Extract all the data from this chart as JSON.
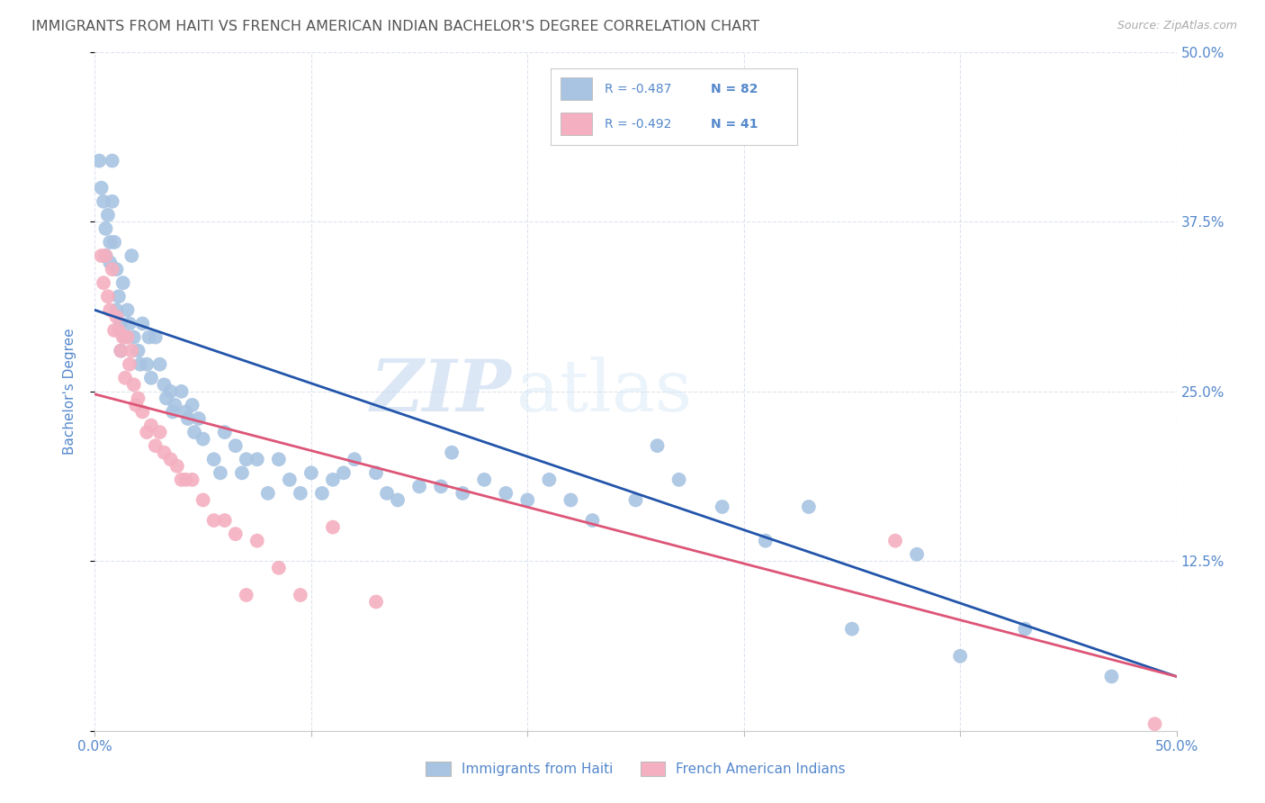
{
  "title": "IMMIGRANTS FROM HAITI VS FRENCH AMERICAN INDIAN BACHELOR'S DEGREE CORRELATION CHART",
  "source_text": "Source: ZipAtlas.com",
  "ylabel": "Bachelor's Degree",
  "xlim": [
    0.0,
    0.5
  ],
  "ylim": [
    0.0,
    0.5
  ],
  "xticks": [
    0.0,
    0.1,
    0.2,
    0.3,
    0.4,
    0.5
  ],
  "yticks": [
    0.0,
    0.125,
    0.25,
    0.375,
    0.5
  ],
  "yticklabels_right": [
    "",
    "12.5%",
    "25.0%",
    "37.5%",
    "50.0%"
  ],
  "watermark_zip": "ZIP",
  "watermark_atlas": "atlas",
  "blue_R": "-0.487",
  "blue_N": "82",
  "pink_R": "-0.492",
  "pink_N": "41",
  "blue_color": "#a8c4e2",
  "pink_color": "#f4b0c0",
  "blue_line_color": "#2255aa",
  "pink_line_color": "#dd5577",
  "title_color": "#555555",
  "axis_label_color": "#5588cc",
  "tick_color": "#5588cc",
  "grid_color": "#dde4ee",
  "blue_scatter_x": [
    0.002,
    0.003,
    0.004,
    0.005,
    0.005,
    0.006,
    0.007,
    0.007,
    0.008,
    0.008,
    0.009,
    0.01,
    0.01,
    0.011,
    0.012,
    0.012,
    0.013,
    0.014,
    0.015,
    0.016,
    0.017,
    0.018,
    0.02,
    0.021,
    0.022,
    0.024,
    0.025,
    0.026,
    0.028,
    0.03,
    0.032,
    0.033,
    0.035,
    0.036,
    0.037,
    0.04,
    0.042,
    0.043,
    0.045,
    0.046,
    0.048,
    0.05,
    0.055,
    0.058,
    0.06,
    0.065,
    0.068,
    0.07,
    0.075,
    0.08,
    0.085,
    0.09,
    0.095,
    0.1,
    0.105,
    0.11,
    0.115,
    0.12,
    0.13,
    0.135,
    0.14,
    0.15,
    0.16,
    0.165,
    0.17,
    0.18,
    0.19,
    0.2,
    0.21,
    0.22,
    0.23,
    0.25,
    0.26,
    0.27,
    0.29,
    0.31,
    0.33,
    0.35,
    0.38,
    0.4,
    0.43,
    0.47
  ],
  "blue_scatter_y": [
    0.42,
    0.4,
    0.39,
    0.37,
    0.35,
    0.38,
    0.36,
    0.345,
    0.42,
    0.39,
    0.36,
    0.34,
    0.31,
    0.32,
    0.3,
    0.28,
    0.33,
    0.29,
    0.31,
    0.3,
    0.35,
    0.29,
    0.28,
    0.27,
    0.3,
    0.27,
    0.29,
    0.26,
    0.29,
    0.27,
    0.255,
    0.245,
    0.25,
    0.235,
    0.24,
    0.25,
    0.235,
    0.23,
    0.24,
    0.22,
    0.23,
    0.215,
    0.2,
    0.19,
    0.22,
    0.21,
    0.19,
    0.2,
    0.2,
    0.175,
    0.2,
    0.185,
    0.175,
    0.19,
    0.175,
    0.185,
    0.19,
    0.2,
    0.19,
    0.175,
    0.17,
    0.18,
    0.18,
    0.205,
    0.175,
    0.185,
    0.175,
    0.17,
    0.185,
    0.17,
    0.155,
    0.17,
    0.21,
    0.185,
    0.165,
    0.14,
    0.165,
    0.075,
    0.13,
    0.055,
    0.075,
    0.04
  ],
  "pink_scatter_x": [
    0.003,
    0.004,
    0.005,
    0.006,
    0.007,
    0.008,
    0.009,
    0.01,
    0.011,
    0.012,
    0.013,
    0.014,
    0.015,
    0.016,
    0.017,
    0.018,
    0.019,
    0.02,
    0.022,
    0.024,
    0.026,
    0.028,
    0.03,
    0.032,
    0.035,
    0.038,
    0.04,
    0.042,
    0.045,
    0.05,
    0.055,
    0.06,
    0.065,
    0.07,
    0.075,
    0.085,
    0.095,
    0.11,
    0.13,
    0.37,
    0.49
  ],
  "pink_scatter_y": [
    0.35,
    0.33,
    0.35,
    0.32,
    0.31,
    0.34,
    0.295,
    0.305,
    0.295,
    0.28,
    0.29,
    0.26,
    0.29,
    0.27,
    0.28,
    0.255,
    0.24,
    0.245,
    0.235,
    0.22,
    0.225,
    0.21,
    0.22,
    0.205,
    0.2,
    0.195,
    0.185,
    0.185,
    0.185,
    0.17,
    0.155,
    0.155,
    0.145,
    0.1,
    0.14,
    0.12,
    0.1,
    0.15,
    0.095,
    0.14,
    0.005
  ],
  "blue_line_x": [
    0.0,
    0.5
  ],
  "blue_line_y": [
    0.31,
    0.04
  ],
  "pink_line_x": [
    0.0,
    0.5
  ],
  "pink_line_y": [
    0.248,
    0.04
  ],
  "legend_label_blue": "Immigrants from Haiti",
  "legend_label_pink": "French American Indians",
  "background_color": "#ffffff"
}
